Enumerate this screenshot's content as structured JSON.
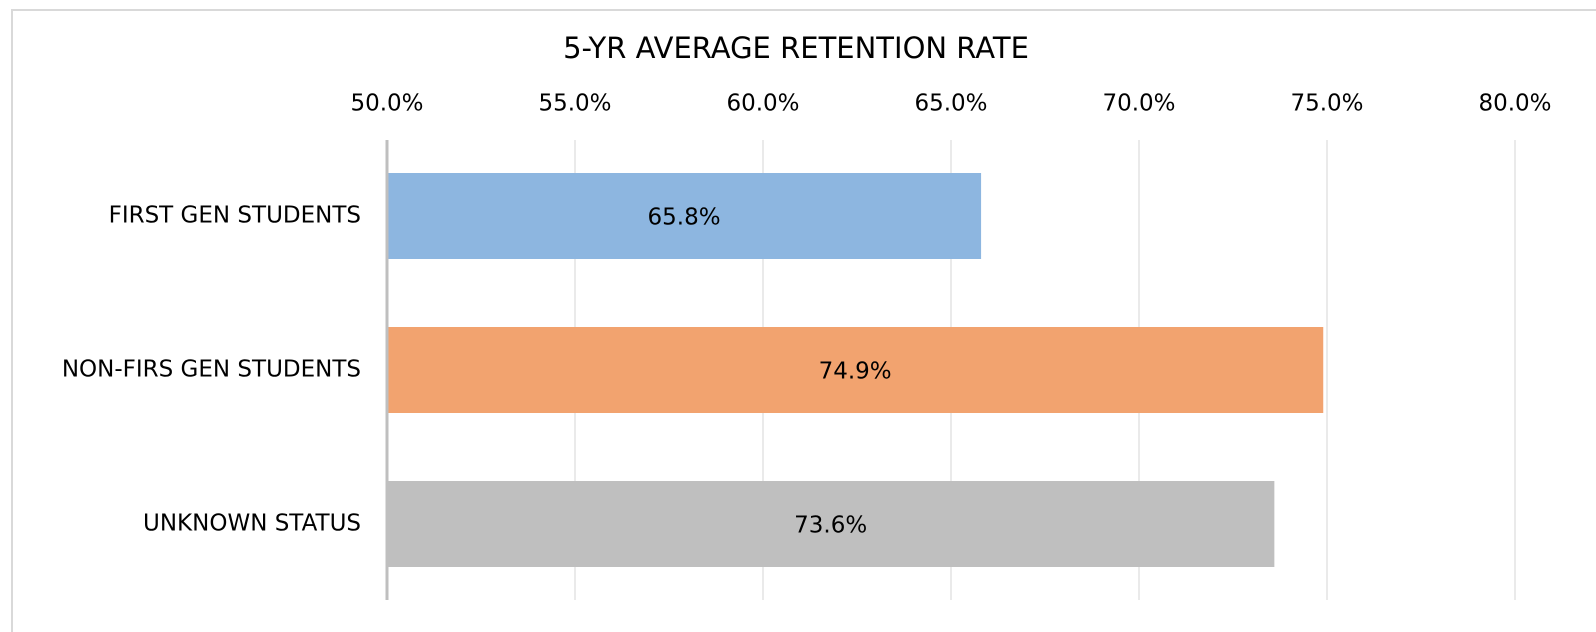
{
  "chart_data": {
    "type": "barh",
    "title": "5-YR AVERAGE RETENTION RATE",
    "categories": [
      "FIRST GEN STUDENTS",
      "NON-FIRS GEN STUDENTS",
      "UNKNOWN STATUS"
    ],
    "values": [
      65.8,
      74.9,
      73.6
    ],
    "value_labels": [
      "65.8%",
      "74.9%",
      "73.6%"
    ],
    "colors": [
      "#8db6e0",
      "#f2a36f",
      "#bfbfbf"
    ],
    "xlim": [
      50,
      80
    ],
    "xticks": [
      {
        "value": 50,
        "label": "50.0%"
      },
      {
        "value": 55,
        "label": "55.0%"
      },
      {
        "value": 60,
        "label": "60.0%"
      },
      {
        "value": 65,
        "label": "65.0%"
      },
      {
        "value": 70,
        "label": "70.0%"
      },
      {
        "value": 75,
        "label": "75.0%"
      },
      {
        "value": 80,
        "label": "80.0%"
      }
    ],
    "grid": true
  }
}
